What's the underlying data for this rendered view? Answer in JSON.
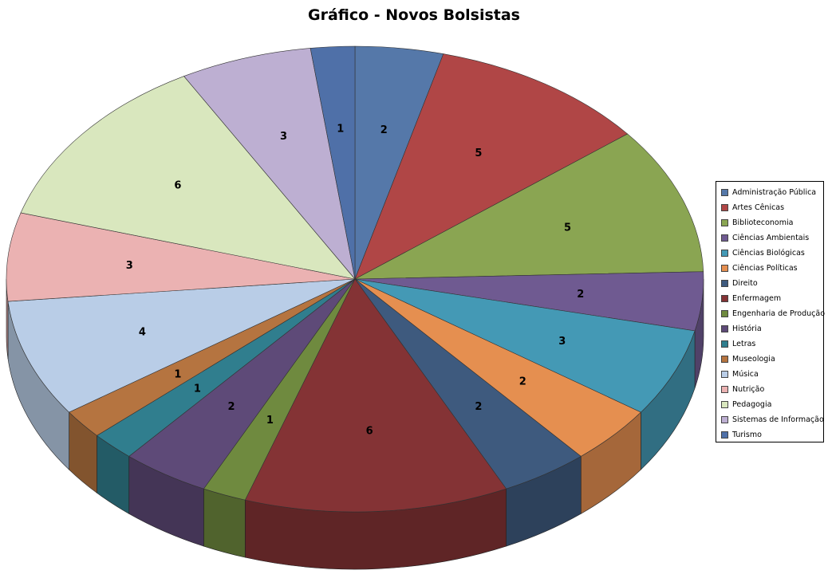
{
  "chart_data": {
    "type": "pie",
    "title": "Gráfico - Novos Bolsistas",
    "style": "3d",
    "legend_position": "right",
    "categories": [
      "Administração Pública",
      "Artes Cênicas",
      "Biblioteconomia",
      "Ciências Ambientais",
      "Ciências Biológicas",
      "Ciências Políticas",
      "Direito",
      "Enfermagem",
      "Engenharia de Produção",
      "História",
      "Letras",
      "Museologia",
      "Música",
      "Nutrição",
      "Pedagogia",
      "Sistemas de Informação",
      "Turismo"
    ],
    "values": [
      2,
      5,
      5,
      2,
      3,
      2,
      2,
      6,
      1,
      2,
      1,
      1,
      4,
      3,
      6,
      3,
      1
    ],
    "colors": [
      "#5578a9",
      "#b04646",
      "#8aa552",
      "#6f5a91",
      "#4499b5",
      "#e58f50",
      "#3e5a7e",
      "#843335",
      "#6f8a3f",
      "#5e4a78",
      "#307e8e",
      "#b57440",
      "#b9cde7",
      "#ebb2b2",
      "#d9e7be",
      "#bdafd2",
      "#4f70a8"
    ]
  }
}
